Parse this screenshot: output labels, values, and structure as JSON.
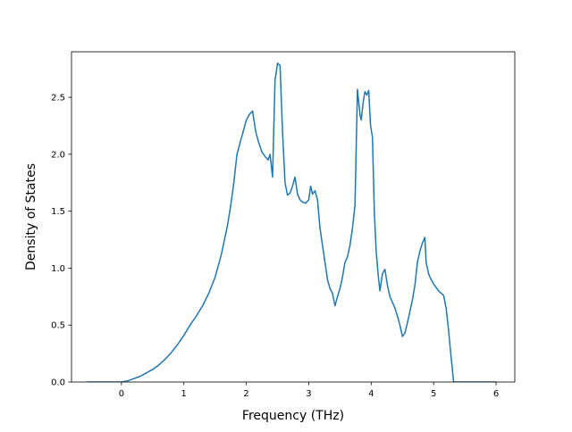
{
  "chart_data": {
    "type": "line",
    "title": "",
    "xlabel": "Frequency (THz)",
    "ylabel": "Density of States",
    "xlim": [
      -0.8,
      6.3
    ],
    "ylim": [
      0.0,
      2.9
    ],
    "xticks": [
      0,
      1,
      2,
      3,
      4,
      5,
      6
    ],
    "yticks": [
      0.0,
      0.5,
      1.0,
      1.5,
      2.0,
      2.5
    ],
    "xtick_labels": [
      "0",
      "1",
      "2",
      "3",
      "4",
      "5",
      "6"
    ],
    "ytick_labels": [
      "0.0",
      "0.5",
      "1.0",
      "1.5",
      "2.0",
      "2.5"
    ],
    "grid": false,
    "line_color": "#1f77b4",
    "series": [
      {
        "x": [
          -0.55,
          -0.3,
          0.0,
          0.1,
          0.2,
          0.3,
          0.4,
          0.5,
          0.6,
          0.7,
          0.8,
          0.9,
          1.0,
          1.1,
          1.2,
          1.3,
          1.4,
          1.5,
          1.6,
          1.7,
          1.75,
          1.8,
          1.85,
          1.9,
          1.95,
          2.0,
          2.05,
          2.1,
          2.15,
          2.2,
          2.25,
          2.3,
          2.35,
          2.38,
          2.42,
          2.46,
          2.5,
          2.54,
          2.58,
          2.62,
          2.66,
          2.7,
          2.74,
          2.78,
          2.82,
          2.86,
          2.9,
          2.95,
          3.0,
          3.03,
          3.06,
          3.1,
          3.14,
          3.18,
          3.22,
          3.26,
          3.3,
          3.34,
          3.38,
          3.42,
          3.46,
          3.5,
          3.54,
          3.58,
          3.62,
          3.66,
          3.7,
          3.74,
          3.78,
          3.82,
          3.84,
          3.87,
          3.9,
          3.93,
          3.96,
          3.99,
          4.02,
          4.05,
          4.08,
          4.11,
          4.14,
          4.18,
          4.22,
          4.26,
          4.3,
          4.34,
          4.38,
          4.42,
          4.46,
          4.5,
          4.54,
          4.58,
          4.62,
          4.66,
          4.7,
          4.74,
          4.78,
          4.82,
          4.86,
          4.88,
          4.92,
          4.96,
          5.0,
          5.04,
          5.08,
          5.12,
          5.16,
          5.2,
          5.24,
          5.28,
          5.32,
          5.36,
          5.4,
          5.44,
          5.5,
          5.7,
          6.0
        ],
        "y": [
          0.0,
          0.0,
          0.0,
          0.01,
          0.03,
          0.05,
          0.08,
          0.11,
          0.15,
          0.2,
          0.26,
          0.33,
          0.41,
          0.5,
          0.58,
          0.67,
          0.78,
          0.92,
          1.12,
          1.38,
          1.55,
          1.75,
          2.0,
          2.1,
          2.2,
          2.3,
          2.35,
          2.38,
          2.2,
          2.1,
          2.02,
          1.98,
          1.95,
          2.0,
          1.8,
          2.65,
          2.8,
          2.78,
          2.2,
          1.75,
          1.64,
          1.66,
          1.72,
          1.8,
          1.65,
          1.6,
          1.58,
          1.57,
          1.6,
          1.72,
          1.65,
          1.68,
          1.6,
          1.35,
          1.2,
          1.05,
          0.9,
          0.82,
          0.78,
          0.67,
          0.75,
          0.82,
          0.92,
          1.05,
          1.1,
          1.2,
          1.35,
          1.55,
          2.57,
          2.35,
          2.3,
          2.45,
          2.55,
          2.52,
          2.56,
          2.25,
          2.15,
          1.5,
          1.15,
          0.95,
          0.8,
          0.95,
          0.99,
          0.85,
          0.75,
          0.7,
          0.65,
          0.58,
          0.5,
          0.4,
          0.43,
          0.52,
          0.62,
          0.72,
          0.85,
          1.05,
          1.15,
          1.22,
          1.27,
          1.05,
          0.95,
          0.9,
          0.86,
          0.83,
          0.8,
          0.78,
          0.76,
          0.65,
          0.45,
          0.22,
          0.0,
          0.0,
          0.0,
          0.0,
          0.0,
          0.0,
          0.0
        ]
      }
    ]
  }
}
